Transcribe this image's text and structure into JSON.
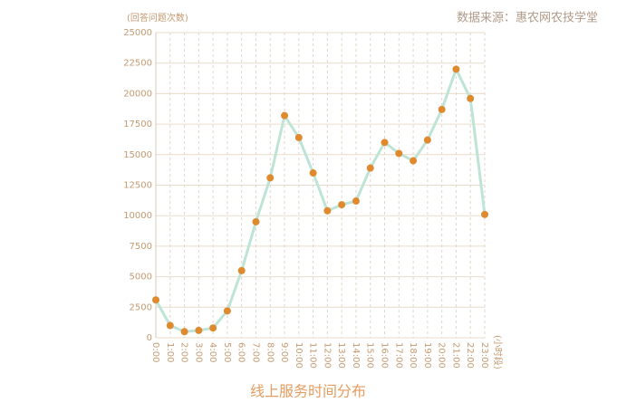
{
  "chart_data": {
    "type": "line",
    "title": "线上服务时间分布",
    "source": "数据来源：惠农网农技学堂",
    "y_axis_label": "(回答问题次数)",
    "x_axis_label": "(小时段)",
    "categories": [
      "0:00",
      "1:00",
      "2:00",
      "3:00",
      "4:00",
      "5:00",
      "6:00",
      "7:00",
      "8:00",
      "9:00",
      "10:00",
      "11:00",
      "12:00",
      "13:00",
      "14:00",
      "15:00",
      "16:00",
      "17:00",
      "18:00",
      "19:00",
      "20:00",
      "21:00",
      "22:00",
      "23:00"
    ],
    "values": [
      3100,
      1000,
      500,
      600,
      800,
      2200,
      5500,
      9500,
      13100,
      18200,
      16400,
      13500,
      10400,
      10900,
      11200,
      13900,
      16000,
      15100,
      14500,
      16200,
      18700,
      22000,
      19600,
      10100
    ],
    "color": "#bde4d7",
    "marker_color": "#df8a2e",
    "ylim": [
      0,
      25000
    ],
    "yticks": [
      0,
      2500,
      5000,
      7500,
      10000,
      12500,
      15000,
      17500,
      20000,
      22500,
      25000
    ],
    "grid": true
  }
}
